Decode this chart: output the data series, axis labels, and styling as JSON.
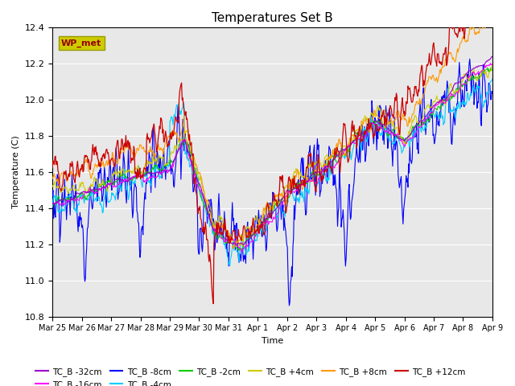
{
  "title": "Temperatures Set B",
  "xlabel": "Time",
  "ylabel": "Temperature (C)",
  "ylim": [
    10.8,
    12.4
  ],
  "yticks": [
    10.8,
    11.0,
    11.2,
    11.4,
    11.6,
    11.8,
    12.0,
    12.2,
    12.4
  ],
  "xtick_labels": [
    "Mar 25",
    "Mar 26",
    "Mar 27",
    "Mar 28",
    "Mar 29",
    "Mar 30",
    "Mar 31",
    "Apr 1",
    "Apr 2",
    "Apr 3",
    "Apr 4",
    "Apr 5",
    "Apr 6",
    "Apr 7",
    "Apr 8",
    "Apr 9"
  ],
  "series_colors": {
    "TC_B -32cm": "#9900cc",
    "TC_B -16cm": "#ff00ff",
    "TC_B -8cm": "#0000ff",
    "TC_B -4cm": "#00ccff",
    "TC_B -2cm": "#00cc00",
    "TC_B +4cm": "#cccc00",
    "TC_B +8cm": "#ff9900",
    "TC_B +12cm": "#cc0000"
  },
  "wp_met_box_color": "#cccc00",
  "wp_met_text_color": "#990000",
  "axes_background": "#e8e8e8",
  "grid_color": "#ffffff"
}
